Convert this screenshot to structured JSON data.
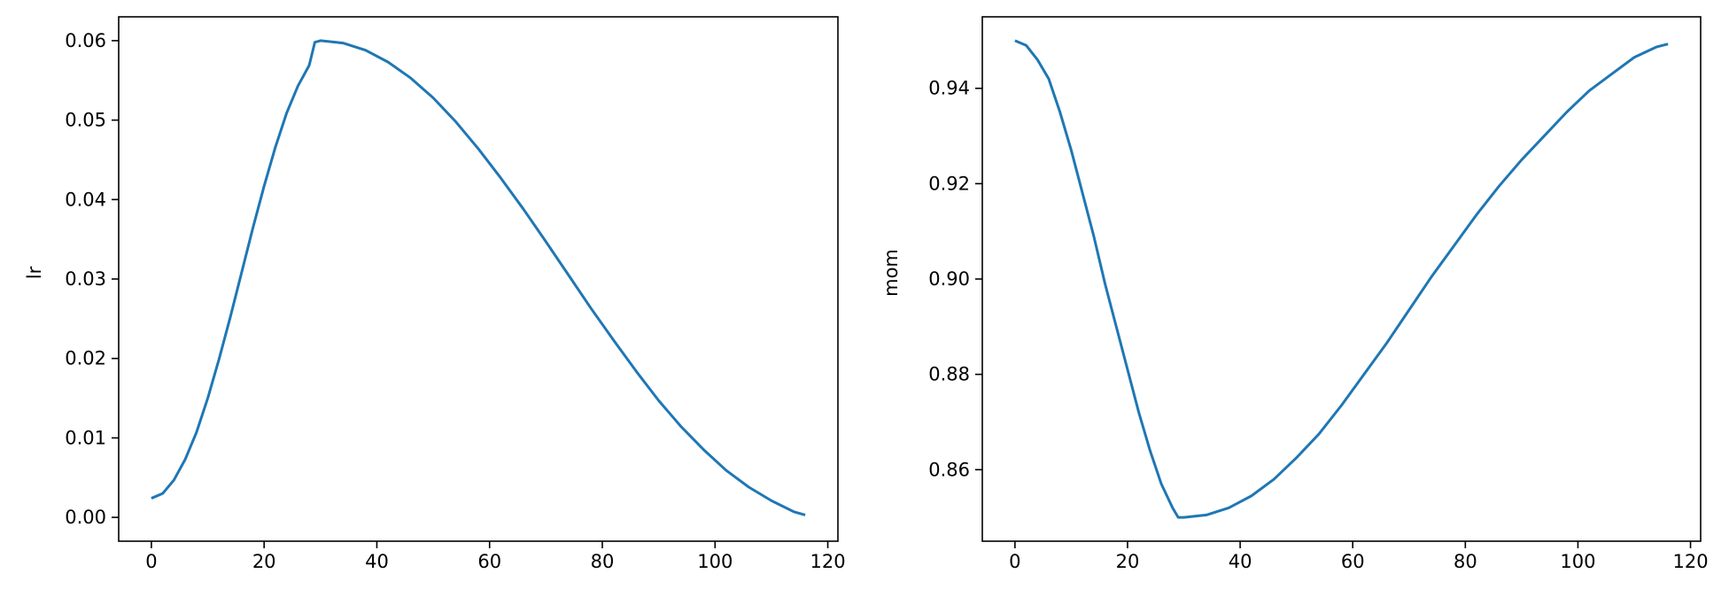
{
  "chart_data": [
    {
      "type": "line",
      "title": "",
      "xlabel": "",
      "ylabel": "lr",
      "xlim": [
        -5.8,
        121.8
      ],
      "ylim": [
        -0.003,
        0.063
      ],
      "xticks": [
        0,
        20,
        40,
        60,
        80,
        100,
        120
      ],
      "xtick_labels": [
        "0",
        "20",
        "40",
        "60",
        "80",
        "100",
        "120"
      ],
      "yticks": [
        0.0,
        0.01,
        0.02,
        0.03,
        0.04,
        0.05,
        0.06
      ],
      "ytick_labels": [
        "0.00",
        "0.01",
        "0.02",
        "0.03",
        "0.04",
        "0.05",
        "0.06"
      ],
      "grid": false,
      "series": [
        {
          "color": "#1f77b4",
          "x": [
            0,
            2,
            4,
            6,
            8,
            10,
            12,
            14,
            16,
            18,
            20,
            22,
            24,
            26,
            28,
            29,
            30,
            34,
            38,
            42,
            46,
            50,
            54,
            58,
            62,
            66,
            70,
            74,
            78,
            82,
            86,
            90,
            94,
            98,
            102,
            106,
            110,
            114,
            116
          ],
          "y": [
            0.0024,
            0.003,
            0.0047,
            0.0073,
            0.0107,
            0.015,
            0.0199,
            0.0252,
            0.0308,
            0.0364,
            0.0417,
            0.0466,
            0.0509,
            0.0543,
            0.0569,
            0.0598,
            0.06,
            0.0597,
            0.0588,
            0.0573,
            0.0553,
            0.0528,
            0.0498,
            0.0464,
            0.0427,
            0.0388,
            0.0347,
            0.0305,
            0.0263,
            0.0223,
            0.0184,
            0.0147,
            0.0114,
            0.0085,
            0.0059,
            0.0038,
            0.0021,
            0.0007,
            0.0003
          ]
        }
      ]
    },
    {
      "type": "line",
      "title": "",
      "xlabel": "",
      "ylabel": "mom",
      "xlim": [
        -5.8,
        121.8
      ],
      "ylim": [
        0.845,
        0.955
      ],
      "xticks": [
        0,
        20,
        40,
        60,
        80,
        100,
        120
      ],
      "xtick_labels": [
        "0",
        "20",
        "40",
        "60",
        "80",
        "100",
        "120"
      ],
      "yticks": [
        0.86,
        0.88,
        0.9,
        0.92,
        0.94
      ],
      "ytick_labels": [
        "0.86",
        "0.88",
        "0.90",
        "0.92",
        "0.94"
      ],
      "grid": false,
      "series": [
        {
          "color": "#1f77b4",
          "x": [
            0,
            2,
            4,
            6,
            8,
            10,
            12,
            14,
            16,
            18,
            20,
            22,
            24,
            26,
            28,
            29,
            30,
            34,
            38,
            42,
            46,
            50,
            54,
            58,
            62,
            66,
            70,
            74,
            78,
            82,
            86,
            90,
            94,
            98,
            102,
            106,
            110,
            114,
            116
          ],
          "y": [
            0.95,
            0.949,
            0.946,
            0.942,
            0.935,
            0.927,
            0.918,
            0.909,
            0.899,
            0.89,
            0.881,
            0.872,
            0.864,
            0.857,
            0.852,
            0.85,
            0.85,
            0.8505,
            0.852,
            0.8545,
            0.858,
            0.8625,
            0.8675,
            0.8735,
            0.88,
            0.8865,
            0.8935,
            0.9005,
            0.907,
            0.9135,
            0.9195,
            0.925,
            0.93,
            0.935,
            0.9395,
            0.943,
            0.9465,
            0.9487,
            0.9493
          ]
        }
      ]
    }
  ]
}
